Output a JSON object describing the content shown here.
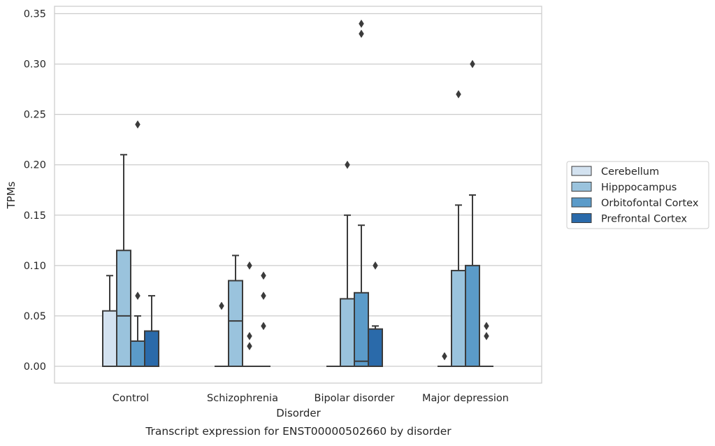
{
  "chart_data": {
    "type": "box",
    "title": "",
    "caption": "Transcript expression for ENST00000502660 by disorder",
    "xlabel": "Disorder",
    "ylabel": "TPMs",
    "ylim": [
      -0.017,
      0.358
    ],
    "y_ticks": [
      0.0,
      0.05,
      0.1,
      0.15,
      0.2,
      0.25,
      0.3,
      0.35
    ],
    "y_tick_labels": [
      "0.00",
      "0.05",
      "0.10",
      "0.15",
      "0.20",
      "0.25",
      "0.30",
      "0.35"
    ],
    "grid": "horizontal",
    "legend_position": "right",
    "categories": [
      "Control",
      "Schizophrenia",
      "Bipolar disorder",
      "Major depression"
    ],
    "series": [
      {
        "name": "Cerebellum",
        "color": "#d3e2f0",
        "boxes": [
          {
            "q1": 0.0,
            "median": 0.0,
            "q3": 0.055,
            "whisker_low": 0.0,
            "whisker_high": 0.09,
            "outliers": []
          },
          {
            "q1": 0.0,
            "median": 0.0,
            "q3": 0.0,
            "whisker_low": 0.0,
            "whisker_high": 0.0,
            "outliers": [
              0.06
            ]
          },
          {
            "q1": 0.0,
            "median": 0.0,
            "q3": 0.0,
            "whisker_low": 0.0,
            "whisker_high": 0.0,
            "outliers": []
          },
          {
            "q1": 0.0,
            "median": 0.0,
            "q3": 0.0,
            "whisker_low": 0.0,
            "whisker_high": 0.0,
            "outliers": [
              0.01
            ]
          }
        ]
      },
      {
        "name": "Hipppocampus",
        "color": "#9ac3dd",
        "boxes": [
          {
            "q1": 0.0,
            "median": 0.05,
            "q3": 0.115,
            "whisker_low": 0.0,
            "whisker_high": 0.21,
            "outliers": []
          },
          {
            "q1": 0.0,
            "median": 0.045,
            "q3": 0.085,
            "whisker_low": 0.0,
            "whisker_high": 0.11,
            "outliers": []
          },
          {
            "q1": 0.0,
            "median": 0.0,
            "q3": 0.067,
            "whisker_low": 0.0,
            "whisker_high": 0.15,
            "outliers": [
              0.2
            ]
          },
          {
            "q1": 0.0,
            "median": 0.0,
            "q3": 0.095,
            "whisker_low": 0.0,
            "whisker_high": 0.16,
            "outliers": [
              0.27
            ]
          }
        ]
      },
      {
        "name": "Orbitofontal Cortex",
        "color": "#5b9bc9",
        "boxes": [
          {
            "q1": 0.0,
            "median": 0.0,
            "q3": 0.025,
            "whisker_low": 0.0,
            "whisker_high": 0.05,
            "outliers": [
              0.07,
              0.24
            ]
          },
          {
            "q1": 0.0,
            "median": 0.0,
            "q3": 0.0,
            "whisker_low": 0.0,
            "whisker_high": 0.0,
            "outliers": [
              0.02,
              0.03,
              0.1
            ]
          },
          {
            "q1": 0.0,
            "median": 0.005,
            "q3": 0.073,
            "whisker_low": 0.0,
            "whisker_high": 0.14,
            "outliers": [
              0.33,
              0.34
            ]
          },
          {
            "q1": 0.0,
            "median": 0.0,
            "q3": 0.1,
            "whisker_low": 0.0,
            "whisker_high": 0.17,
            "outliers": [
              0.3
            ]
          }
        ]
      },
      {
        "name": "Prefrontal Cortex",
        "color": "#2a6aaa",
        "boxes": [
          {
            "q1": 0.0,
            "median": 0.0,
            "q3": 0.035,
            "whisker_low": 0.0,
            "whisker_high": 0.07,
            "outliers": []
          },
          {
            "q1": 0.0,
            "median": 0.0,
            "q3": 0.0,
            "whisker_low": 0.0,
            "whisker_high": 0.0,
            "outliers": [
              0.04,
              0.07,
              0.09
            ]
          },
          {
            "q1": 0.0,
            "median": 0.0,
            "q3": 0.037,
            "whisker_low": 0.0,
            "whisker_high": 0.04,
            "outliers": [
              0.1
            ]
          },
          {
            "q1": 0.0,
            "median": 0.0,
            "q3": 0.0,
            "whisker_low": 0.0,
            "whisker_high": 0.0,
            "outliers": [
              0.03,
              0.04
            ]
          }
        ]
      }
    ]
  }
}
